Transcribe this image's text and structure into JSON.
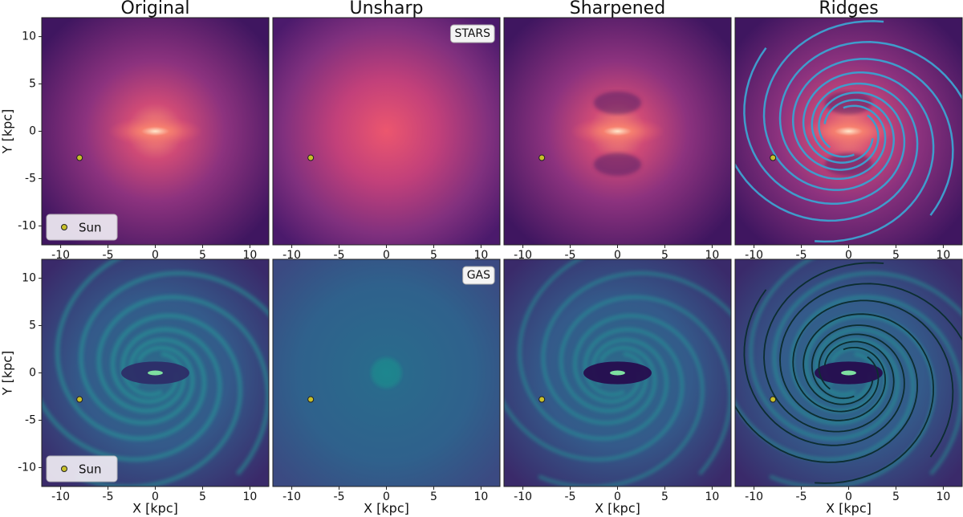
{
  "chart_data": {
    "type": "image",
    "columns": [
      "Original",
      "Unsharp",
      "Sharpened",
      "Ridges"
    ],
    "rows": [
      "STARS",
      "GAS"
    ],
    "xlabel": "X [kpc]",
    "ylabel": "Y [kpc]",
    "xlim": [
      -12,
      12
    ],
    "ylim": [
      -12,
      12
    ],
    "xticks": [
      -10,
      -5,
      0,
      5,
      10
    ],
    "yticks": [
      -10,
      -5,
      0,
      5,
      10
    ],
    "sun": {
      "name": "Sun",
      "x": -8,
      "y": -2.8,
      "color": "#c8c02a"
    }
  }
}
